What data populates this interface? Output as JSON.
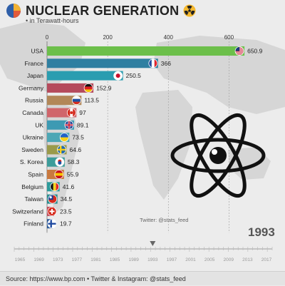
{
  "header": {
    "title": "NUCLEAR GENERATION",
    "subtitle": "• in Terawatt-hours"
  },
  "colors": {
    "background": "#ececec",
    "map_land": "#d6d6d6",
    "grid": "#9e9e9e",
    "value_label": "#222222"
  },
  "icons": {
    "logo": "pie-chart-logo-icon",
    "title_badge": "radiation-icon",
    "decoration": "atom-icon"
  },
  "chart_data": {
    "type": "bar",
    "orientation": "horizontal",
    "title": "NUCLEAR GENERATION",
    "subtitle": "• in Terawatt-hours",
    "xlim": [
      0,
      700
    ],
    "xticks": [
      0,
      200,
      400,
      600
    ],
    "grid": true,
    "categories": [
      "USA",
      "France",
      "Japan",
      "Germany",
      "Russia",
      "Canada",
      "UK",
      "Ukraine",
      "Sweden",
      "S. Korea",
      "Spain",
      "Belgium",
      "Taiwan",
      "Switzerland",
      "Finland"
    ],
    "values": [
      650.9,
      366,
      250.5,
      152.9,
      113.5,
      97,
      89.1,
      73.5,
      64.6,
      58.3,
      55.9,
      41.6,
      34.5,
      23.5,
      19.7
    ],
    "value_labels": [
      "650.9",
      "366",
      "250.5",
      "152.9",
      "113.5",
      "97",
      "89.1",
      "73.5",
      "64.6",
      "58.3",
      "55.9",
      "41.6",
      "34.5",
      "23.5",
      "19.7"
    ],
    "bar_colors": [
      "#6cbf4a",
      "#2f7fa1",
      "#2a9db0",
      "#b54a5c",
      "#b28758",
      "#d0656b",
      "#3d9ab3",
      "#4da7b5",
      "#9a9a4a",
      "#3c9c9a",
      "#c9793f",
      "#2d9b9b",
      "#2a8d8f",
      "#c44c5a",
      "#2c5b9a"
    ],
    "flags": [
      "usa",
      "france",
      "japan",
      "germany",
      "russia",
      "canada",
      "uk",
      "ukraine",
      "sweden",
      "s-korea",
      "spain",
      "belgium",
      "taiwan",
      "switzerland",
      "finland"
    ]
  },
  "year": "1993",
  "twitter_handle": "Twitter: @stats_feed",
  "timeline": {
    "labels": [
      "1965",
      "1969",
      "1973",
      "1977",
      "1981",
      "1985",
      "1989",
      "1993",
      "1997",
      "2001",
      "2005",
      "2009",
      "2013",
      "2017"
    ],
    "current": "1993"
  },
  "footer": {
    "source": "Source: https://www.bp.com • Twitter & Instagram: @stats_feed"
  }
}
